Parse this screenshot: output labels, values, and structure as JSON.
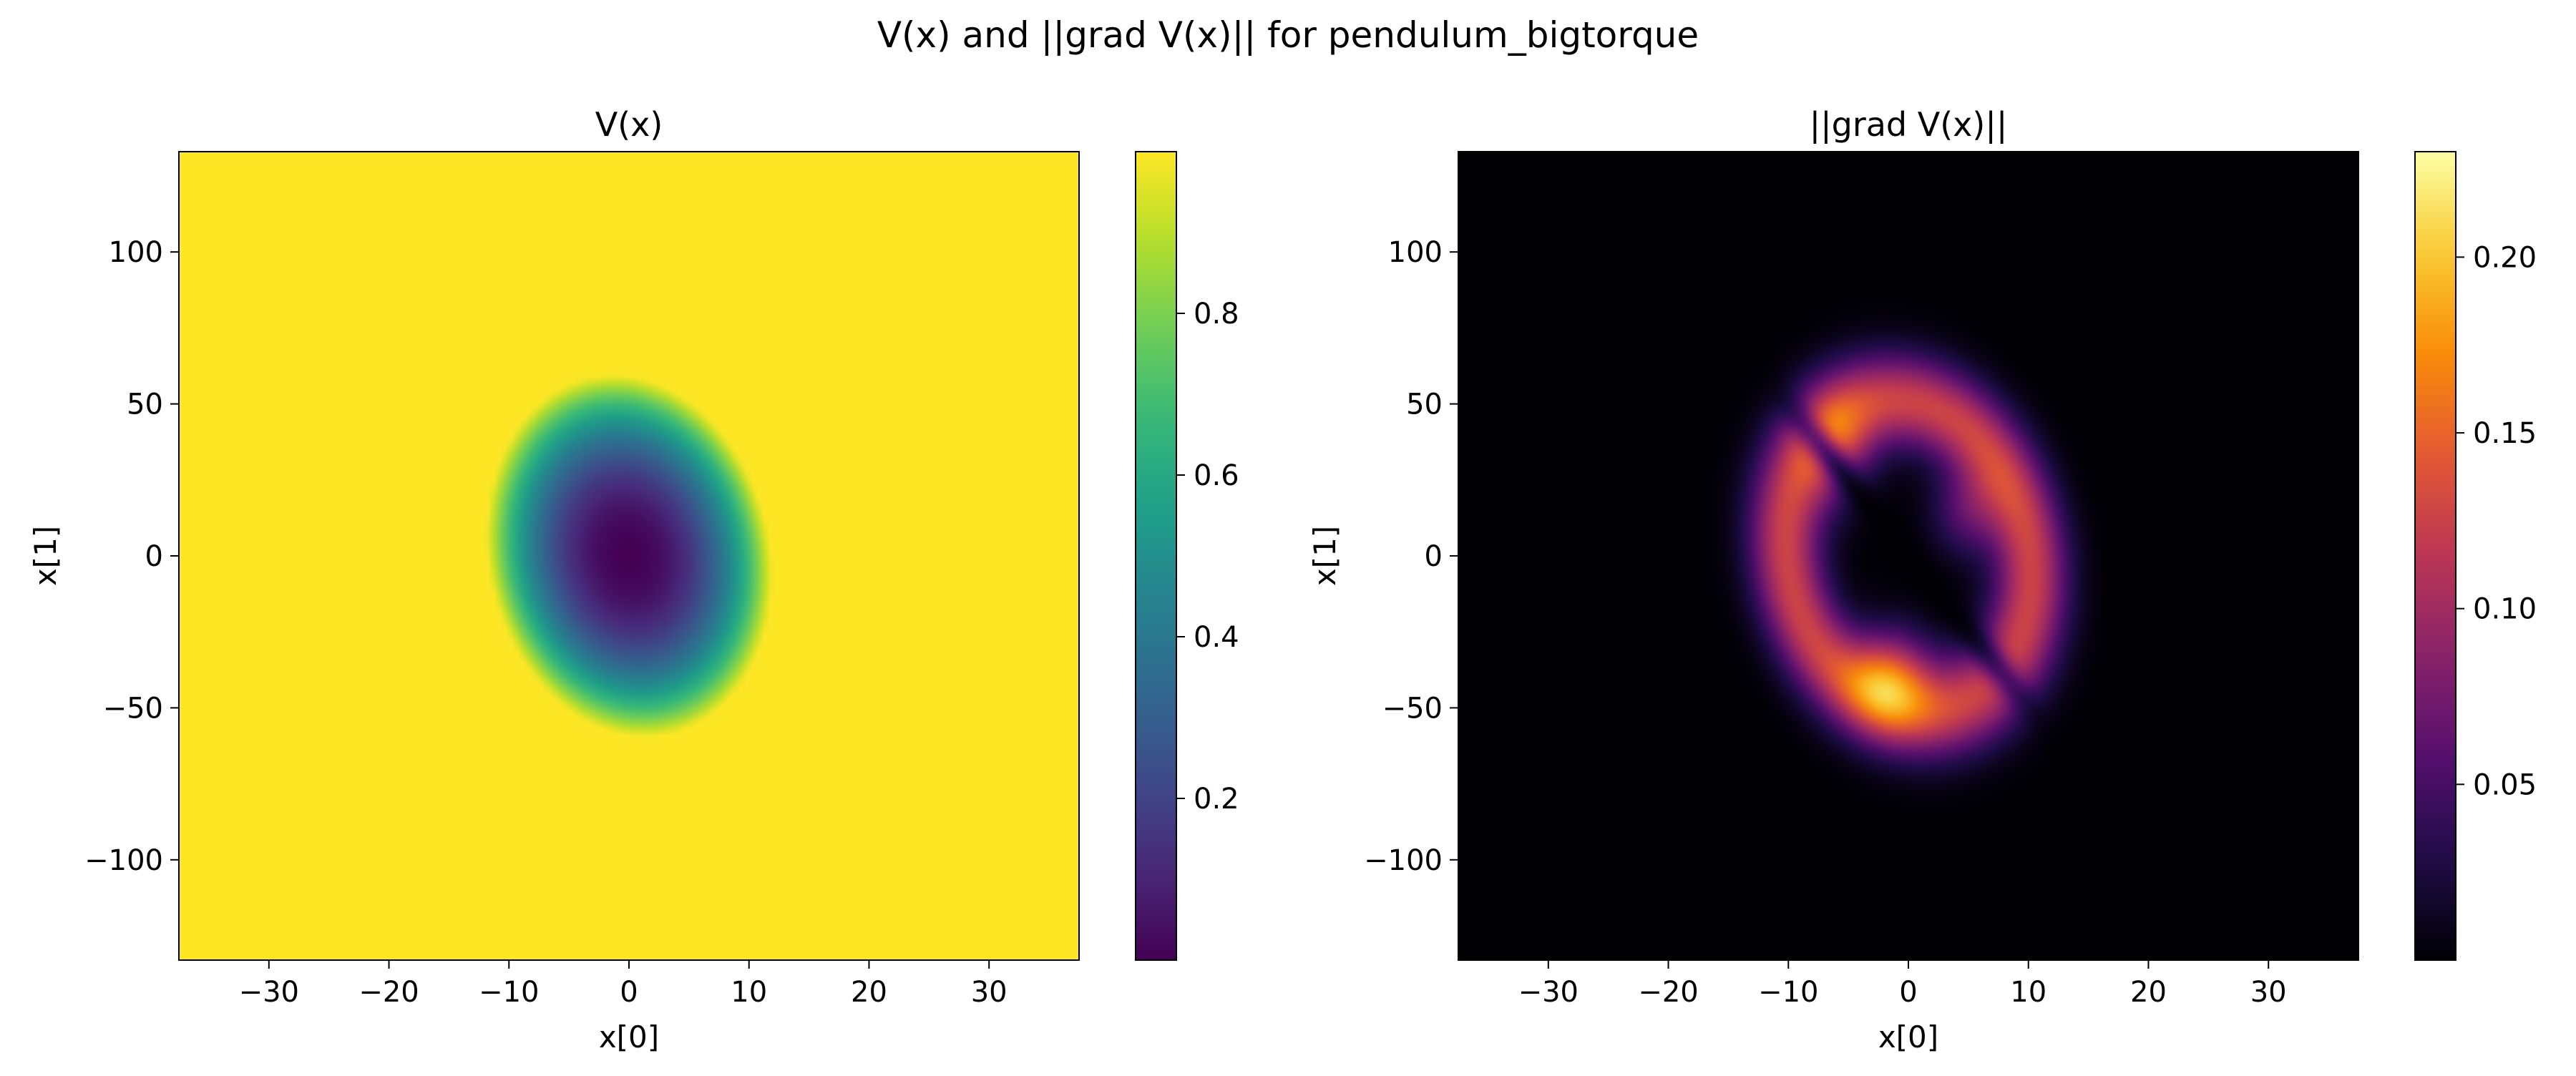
{
  "figure": {
    "title": "V(x) and ||grad V(x)|| for pendulum_bigtorque"
  },
  "chart_data": [
    {
      "type": "heatmap",
      "title": "V(x)",
      "xlabel": "x[0]",
      "ylabel": "x[1]",
      "xlim": [
        -37.5,
        37.5
      ],
      "ylim": [
        -133,
        133
      ],
      "xticks": [
        -30,
        -20,
        -10,
        0,
        10,
        20,
        30
      ],
      "xtick_labels": [
        "−30",
        "−20",
        "−10",
        "0",
        "10",
        "20",
        "30"
      ],
      "yticks": [
        -100,
        -50,
        0,
        50,
        100
      ],
      "ytick_labels": [
        "−100",
        "−50",
        "0",
        "50",
        "100"
      ],
      "colormap": "viridis",
      "colorbar": {
        "range": [
          0.0,
          1.0
        ],
        "ticks": [
          0.2,
          0.4,
          0.6,
          0.8
        ],
        "tick_labels": [
          "0.2",
          "0.4",
          "0.6",
          "0.8"
        ]
      },
      "field": "Sublevel-set value function: minimum ~0 at origin, dark core elongated along x[1] ≈ −5·x[0], rising to ~0.5 at the boundary, saturating at ~1.0 elsewhere",
      "grid": false
    },
    {
      "type": "heatmap",
      "title": "||grad V(x)||",
      "xlabel": "x[0]",
      "ylabel": "x[1]",
      "xlim": [
        -37.5,
        37.5
      ],
      "ylim": [
        -133,
        133
      ],
      "xticks": [
        -30,
        -20,
        -10,
        0,
        10,
        20,
        30
      ],
      "xtick_labels": [
        "−30",
        "−20",
        "−10",
        "0",
        "10",
        "20",
        "30"
      ],
      "yticks": [
        -100,
        -50,
        0,
        50,
        100
      ],
      "ytick_labels": [
        "−100",
        "−50",
        "0",
        "50",
        "100"
      ],
      "colormap": "inferno",
      "colorbar": {
        "range": [
          0.0,
          0.23
        ],
        "ticks": [
          0.05,
          0.1,
          0.15,
          0.2
        ],
        "tick_labels": [
          "0.05",
          "0.10",
          "0.15",
          "0.20"
        ]
      },
      "field": "Gradient magnitude: near 0 at the dark core and far field, ring of high values around the core with peak ~0.23 at approximately (−2, −40)",
      "grid": false
    }
  ]
}
